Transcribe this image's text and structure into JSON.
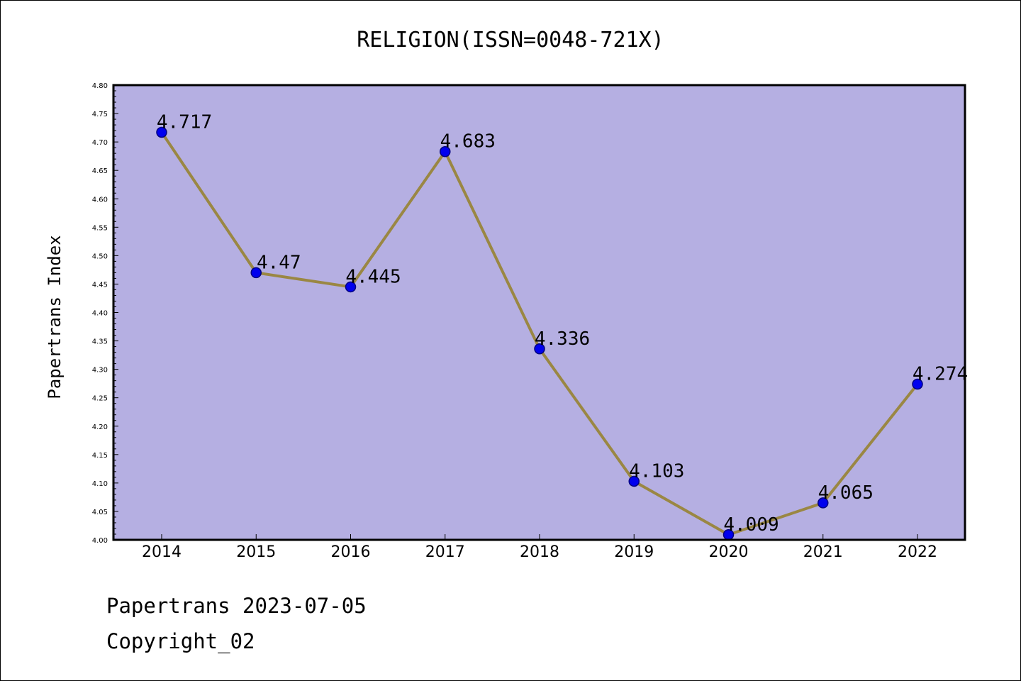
{
  "footer": {
    "line1": "Papertrans 2023-07-05",
    "line2": "Copyright_02"
  },
  "chart_data": {
    "type": "line",
    "title": "RELIGION(ISSN=0048-721X)",
    "xlabel": "",
    "ylabel": "Papertrans Index",
    "x": [
      "2014",
      "2015",
      "2016",
      "2017",
      "2018",
      "2019",
      "2020",
      "2021",
      "2022"
    ],
    "values": [
      4.717,
      4.47,
      4.445,
      4.683,
      4.336,
      4.103,
      4.009,
      4.065,
      4.274
    ],
    "data_labels": [
      "4.717",
      "4.47",
      "4.445",
      "4.683",
      "4.336",
      "4.103",
      "4.009",
      "4.065",
      "4.274"
    ],
    "ylim": [
      4.0,
      4.8
    ],
    "yticks": [
      "4.00",
      "4.05",
      "4.10",
      "4.15",
      "4.20",
      "4.25",
      "4.30",
      "4.35",
      "4.40",
      "4.45",
      "4.50",
      "4.55",
      "4.60",
      "4.65",
      "4.70",
      "4.75",
      "4.80"
    ],
    "grid": false,
    "legend": "none",
    "colors": {
      "plot_background": "#b5afe2",
      "line": "#9a8743",
      "marker": "#0000ee",
      "marker_edge": "#000080"
    }
  }
}
